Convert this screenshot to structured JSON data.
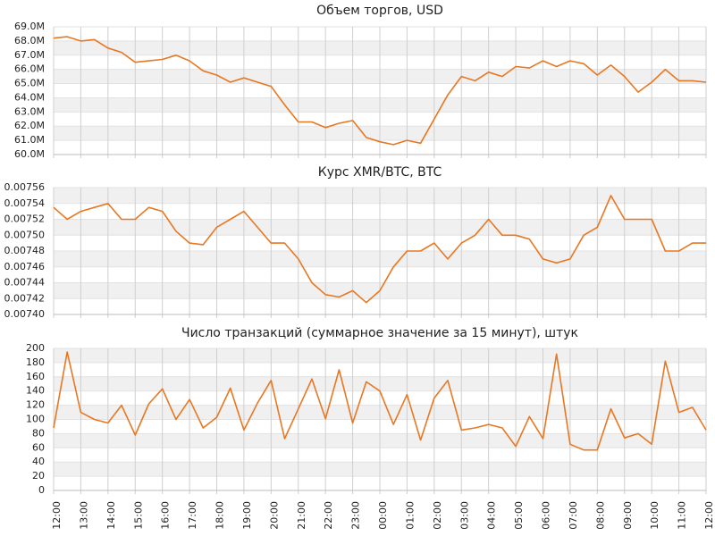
{
  "chart_data": [
    {
      "type": "line",
      "title": "Объем торгов, USD",
      "x": [
        0,
        0.5,
        1,
        1.5,
        2,
        2.5,
        3,
        3.5,
        4,
        4.5,
        5,
        5.5,
        6,
        6.5,
        7,
        7.5,
        8,
        8.5,
        9,
        9.5,
        10,
        10.5,
        11,
        11.5,
        12,
        12.5,
        13,
        13.5,
        14,
        14.5,
        15,
        15.5,
        16,
        16.5,
        17,
        17.5,
        18,
        18.5,
        19,
        19.5,
        20,
        20.5,
        21,
        21.5,
        22,
        22.5,
        23,
        23.5,
        24
      ],
      "series": [
        {
          "color": "#e87722",
          "values": [
            68.2,
            68.3,
            68.0,
            68.1,
            67.5,
            67.2,
            66.5,
            66.6,
            66.7,
            67.0,
            66.6,
            65.9,
            65.6,
            65.1,
            65.4,
            65.1,
            64.8,
            63.5,
            62.3,
            62.3,
            61.9,
            62.2,
            62.4,
            61.2,
            60.9,
            60.7,
            61.0,
            60.8,
            62.5,
            64.2,
            65.5,
            65.2,
            65.8,
            65.5,
            66.2,
            66.1,
            66.6,
            66.2,
            66.6,
            66.4,
            65.6,
            66.3,
            65.5,
            64.4,
            65.1,
            66.0,
            65.2,
            65.2,
            65.1
          ]
        }
      ],
      "xlim": [
        0,
        24
      ],
      "ylim": [
        60,
        69
      ],
      "yticks": [
        {
          "value": 60,
          "label": "60.0M"
        },
        {
          "value": 61,
          "label": "61.0M"
        },
        {
          "value": 62,
          "label": "62.0M"
        },
        {
          "value": 63,
          "label": "63.0M"
        },
        {
          "value": 64,
          "label": "64.0M"
        },
        {
          "value": 65,
          "label": "65.0M"
        },
        {
          "value": 66,
          "label": "66.0M"
        },
        {
          "value": 67,
          "label": "67.0M"
        },
        {
          "value": 68,
          "label": "68.0M"
        },
        {
          "value": 69,
          "label": "69.0M"
        }
      ],
      "grid": true
    },
    {
      "type": "line",
      "title": "Курс XMR/BTC, BTC",
      "x": [
        0,
        0.5,
        1,
        1.5,
        2,
        2.5,
        3,
        3.5,
        4,
        4.5,
        5,
        5.5,
        6,
        6.5,
        7,
        7.5,
        8,
        8.5,
        9,
        9.5,
        10,
        10.5,
        11,
        11.5,
        12,
        12.5,
        13,
        13.5,
        14,
        14.5,
        15,
        15.5,
        16,
        16.5,
        17,
        17.5,
        18,
        18.5,
        19,
        19.5,
        20,
        20.5,
        21,
        21.5,
        22,
        22.5,
        23,
        23.5,
        24
      ],
      "series": [
        {
          "color": "#e87722",
          "values": [
            0.007535,
            0.00752,
            0.00753,
            0.007535,
            0.00754,
            0.00752,
            0.00752,
            0.007535,
            0.00753,
            0.007505,
            0.00749,
            0.007488,
            0.00751,
            0.00752,
            0.00753,
            0.00751,
            0.00749,
            0.00749,
            0.00747,
            0.00744,
            0.007425,
            0.007422,
            0.00743,
            0.007415,
            0.00743,
            0.00746,
            0.00748,
            0.00748,
            0.00749,
            0.00747,
            0.00749,
            0.0075,
            0.00752,
            0.0075,
            0.0075,
            0.007495,
            0.00747,
            0.007465,
            0.00747,
            0.0075,
            0.00751,
            0.00755,
            0.00752,
            0.00752,
            0.00752,
            0.00748,
            0.00748,
            0.00749,
            0.00749
          ]
        }
      ],
      "xlim": [
        0,
        24
      ],
      "ylim": [
        0.0074,
        0.00756
      ],
      "yticks": [
        {
          "value": 0.0074,
          "label": "0.00740"
        },
        0.00742,
        0.00744,
        0.00746,
        0.00748,
        {
          "value": 0.0075,
          "label": "0.00750"
        },
        0.00752,
        0.00754,
        0.00756
      ],
      "grid": true
    },
    {
      "type": "line",
      "title": "Число транзакций (суммарное значение за 15 минут), штук",
      "x": [
        0,
        0.5,
        1,
        1.5,
        2,
        2.5,
        3,
        3.5,
        4,
        4.5,
        5,
        5.5,
        6,
        6.5,
        7,
        7.5,
        8,
        8.5,
        9,
        9.5,
        10,
        10.5,
        11,
        11.5,
        12,
        12.5,
        13,
        13.5,
        14,
        14.5,
        15,
        15.5,
        16,
        16.5,
        17,
        17.5,
        18,
        18.5,
        19,
        19.5,
        20,
        20.5,
        21,
        21.5,
        22,
        22.5,
        23,
        23.5,
        24
      ],
      "series": [
        {
          "color": "#e87722",
          "values": [
            88,
            195,
            110,
            100,
            95,
            120,
            78,
            122,
            143,
            100,
            128,
            88,
            103,
            144,
            85,
            123,
            155,
            73,
            115,
            157,
            101,
            170,
            95,
            153,
            140,
            93,
            135,
            71,
            130,
            155,
            85,
            88,
            93,
            88,
            62,
            104,
            73,
            192,
            65,
            57,
            57,
            115,
            74,
            80,
            65,
            182,
            110,
            117,
            85
          ]
        }
      ],
      "xlim": [
        0,
        24
      ],
      "ylim": [
        0,
        200
      ],
      "yticks": [
        0,
        20,
        40,
        60,
        80,
        100,
        120,
        140,
        160,
        180,
        200
      ],
      "xticks": [
        {
          "value": 0,
          "label": "12:00"
        },
        {
          "value": 1,
          "label": "13:00"
        },
        {
          "value": 2,
          "label": "14:00"
        },
        {
          "value": 3,
          "label": "15:00"
        },
        {
          "value": 4,
          "label": "16:00"
        },
        {
          "value": 5,
          "label": "17:00"
        },
        {
          "value": 6,
          "label": "18:00"
        },
        {
          "value": 7,
          "label": "19:00"
        },
        {
          "value": 8,
          "label": "20:00"
        },
        {
          "value": 9,
          "label": "21:00"
        },
        {
          "value": 10,
          "label": "22:00"
        },
        {
          "value": 11,
          "label": "23:00"
        },
        {
          "value": 12,
          "label": "00:00"
        },
        {
          "value": 13,
          "label": "01:00"
        },
        {
          "value": 14,
          "label": "02:00"
        },
        {
          "value": 15,
          "label": "03:00"
        },
        {
          "value": 16,
          "label": "04:00"
        },
        {
          "value": 17,
          "label": "05:00"
        },
        {
          "value": 18,
          "label": "06:00"
        },
        {
          "value": 19,
          "label": "07:00"
        },
        {
          "value": 20,
          "label": "08:00"
        },
        {
          "value": 21,
          "label": "09:00"
        },
        {
          "value": 22,
          "label": "10:00"
        },
        {
          "value": 23,
          "label": "11:00"
        },
        {
          "value": 24,
          "label": "12:00"
        }
      ],
      "grid": true
    }
  ]
}
